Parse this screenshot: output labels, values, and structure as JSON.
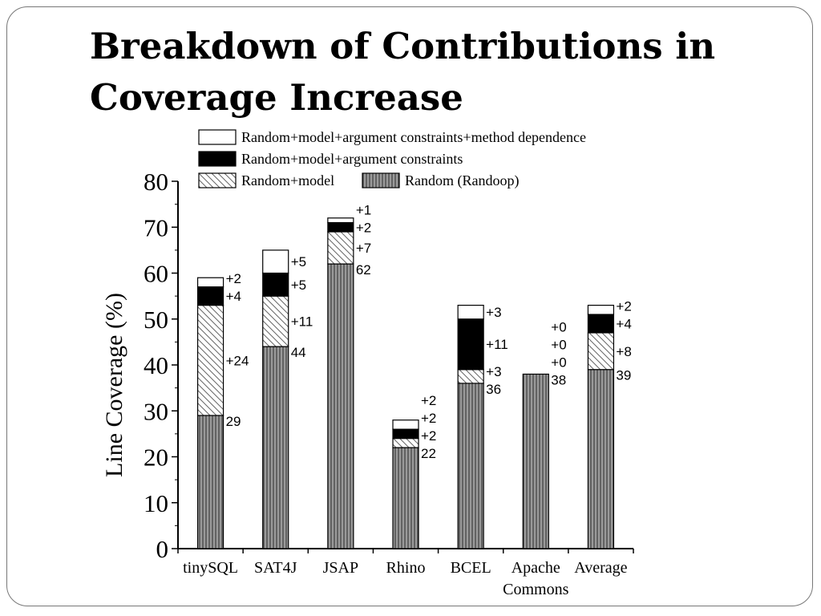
{
  "slide": {
    "title_line1": "Breakdown of Contributions in",
    "title_line2": "Coverage Increase"
  },
  "colors": {
    "random": "#888888",
    "argument": "#000000",
    "method": "#ffffff",
    "stroke": "#000000"
  },
  "chart_data": {
    "type": "bar",
    "stacked": true,
    "title": "",
    "xlabel": "",
    "ylabel": "Line Coverage (%)",
    "ylim": [
      0,
      80
    ],
    "yticks": [
      0,
      10,
      20,
      30,
      40,
      50,
      60,
      70,
      80
    ],
    "legend_position": "top",
    "categories": [
      "tinySQL",
      "SAT4J",
      "JSAP",
      "Rhino",
      "BCEL",
      "Apache Commons",
      "Average"
    ],
    "category_lines": [
      [
        "tinySQL"
      ],
      [
        "SAT4J"
      ],
      [
        "JSAP"
      ],
      [
        "Rhino"
      ],
      [
        "BCEL"
      ],
      [
        "Apache",
        "Commons"
      ],
      [
        "Average"
      ]
    ],
    "series": [
      {
        "key": "random",
        "name": "Random (Randoop)",
        "pattern": "vertical-hatch",
        "values": [
          29,
          44,
          62,
          22,
          36,
          38,
          39
        ]
      },
      {
        "key": "model",
        "name": "Random+model",
        "pattern": "diagonal-hatch",
        "values": [
          24,
          11,
          7,
          2,
          3,
          0,
          8
        ]
      },
      {
        "key": "argument",
        "name": "Random+model+argument constraints",
        "pattern": "solid-black",
        "values": [
          4,
          5,
          2,
          2,
          11,
          0,
          4
        ]
      },
      {
        "key": "method",
        "name": "Random+model+argument constraints+method dependence",
        "pattern": "white",
        "values": [
          2,
          5,
          1,
          2,
          3,
          0,
          2
        ]
      }
    ],
    "data_labels": [
      [
        "29",
        "+24",
        "+4",
        "+2"
      ],
      [
        "44",
        "+11",
        "+5",
        "+5"
      ],
      [
        "62",
        "+7",
        "+2",
        "+1"
      ],
      [
        "22",
        "+2",
        "+2",
        "+2"
      ],
      [
        "36",
        "+3",
        "+11",
        "+3"
      ],
      [
        "38",
        "+0",
        "+0",
        "+0"
      ],
      [
        "39",
        "+8",
        "+4",
        "+2"
      ]
    ],
    "legend_rows": [
      [
        {
          "text": "Random+model+argument constraints+method dependence",
          "series": "method"
        }
      ],
      [
        {
          "text": "Random+model+argument constraints",
          "series": "argument"
        }
      ],
      [
        {
          "text": "Random+model",
          "series": "model"
        },
        {
          "text": "Random (Randoop)",
          "series": "random"
        }
      ]
    ]
  }
}
